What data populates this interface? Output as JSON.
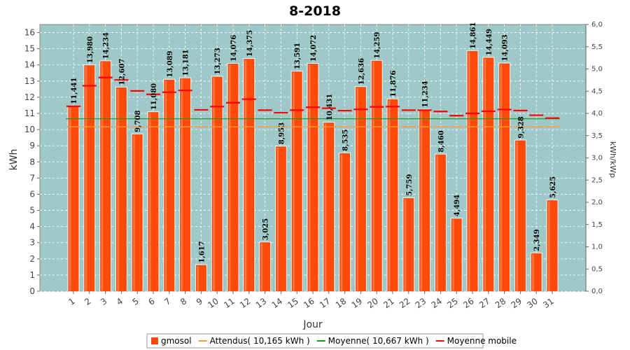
{
  "chart_data": {
    "type": "bar",
    "title": "8-2018",
    "xlabel": "Jour",
    "ylabel": "kWh",
    "y2label": "kWh/kWp",
    "ylim": [
      0,
      16.5
    ],
    "y2lim": [
      0,
      6.0
    ],
    "y_ticks": [
      "0",
      "1",
      "2",
      "3",
      "4",
      "5",
      "6",
      "7",
      "8",
      "9",
      "10",
      "11",
      "12",
      "13",
      "14",
      "15",
      "16"
    ],
    "y2_ticks": [
      "0,0",
      "0,5",
      "1,0",
      "1,5",
      "2,0",
      "2,5",
      "3,0",
      "3,5",
      "4,0",
      "4,5",
      "5,0",
      "5,5",
      "6,0"
    ],
    "grid": true,
    "legend_position": "bottom",
    "categories": [
      "1",
      "2",
      "3",
      "4",
      "5",
      "6",
      "7",
      "8",
      "9",
      "10",
      "11",
      "12",
      "13",
      "14",
      "15",
      "16",
      "17",
      "18",
      "19",
      "20",
      "21",
      "22",
      "23",
      "24",
      "25",
      "26",
      "27",
      "28",
      "29",
      "30",
      "31"
    ],
    "series": [
      {
        "name": "gmosol",
        "kind": "bar",
        "color": "#ff4a0a",
        "values": [
          11.441,
          13.98,
          14.234,
          12.607,
          9.708,
          11.08,
          13.089,
          13.181,
          1.617,
          13.273,
          14.076,
          14.375,
          3.025,
          8.953,
          13.591,
          14.072,
          10.431,
          8.535,
          12.636,
          14.259,
          11.876,
          5.759,
          11.234,
          8.46,
          4.494,
          14.861,
          14.449,
          14.093,
          9.328,
          2.349,
          5.625
        ],
        "labels": [
          "11,441",
          "13,980",
          "14,234",
          "12,607",
          "9,708",
          "11,080",
          "13,089",
          "13,181",
          "1,617",
          "13,273",
          "14,076",
          "14,375",
          "3,025",
          "8,953",
          "13,591",
          "14,072",
          "10,431",
          "8,535",
          "12,636",
          "14,259",
          "11,876",
          "5,759",
          "11,234",
          "8,460",
          "4,494",
          "14,861",
          "14,449",
          "14,093",
          "9,328",
          "2,349",
          "5,625"
        ]
      },
      {
        "name": "Attendus( 10,165 kWh )",
        "kind": "ticks",
        "color": "#ff9933",
        "values": [
          10.165,
          10.165,
          10.165,
          10.165,
          10.165,
          10.165,
          10.165,
          10.165,
          10.165,
          10.165,
          10.165,
          10.165,
          10.165,
          10.165,
          10.165,
          10.165,
          10.165,
          10.165,
          10.165,
          10.165,
          10.165,
          10.165,
          10.165,
          10.165,
          10.165,
          10.165,
          10.165,
          10.165,
          10.165,
          10.165,
          10.165
        ]
      },
      {
        "name": "Moyenne( 10,667 kWh )",
        "kind": "hline",
        "color": "#119911",
        "value": 10.667
      },
      {
        "name": "Moyenne mobile",
        "kind": "ticks",
        "color": "#ff0000",
        "values": [
          11.44,
          12.71,
          13.22,
          13.07,
          12.39,
          12.18,
          12.31,
          12.42,
          11.22,
          11.42,
          11.66,
          11.88,
          11.2,
          11.04,
          11.2,
          11.38,
          11.32,
          11.17,
          11.25,
          11.4,
          11.42,
          11.2,
          11.2,
          11.12,
          10.86,
          11.0,
          11.13,
          11.24,
          11.18,
          10.89,
          10.71
        ]
      }
    ]
  }
}
